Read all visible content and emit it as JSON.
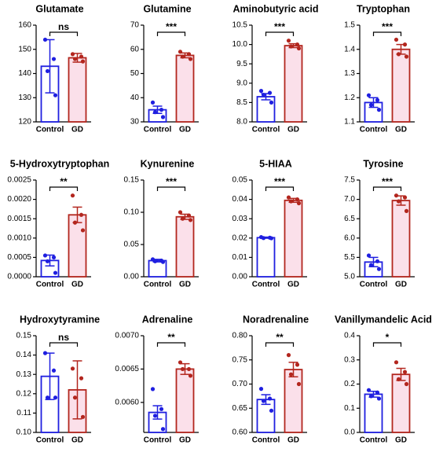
{
  "chart_data": [
    {
      "type": "bar",
      "title": "Glutamate",
      "categories": [
        "Control",
        "GD"
      ],
      "values": [
        143,
        146.5
      ],
      "errors": [
        11,
        1.8
      ],
      "points": [
        [
          154,
          146,
          141,
          131
        ],
        [
          148,
          147,
          146,
          145
        ]
      ],
      "significance": "ns",
      "colors": [
        "#1f1fe0",
        "#b3261e"
      ],
      "fills": [
        "#ffffff",
        "#fbe0ea"
      ],
      "ylim": [
        120,
        160
      ],
      "yticks": [
        120,
        130,
        140,
        150,
        160
      ]
    },
    {
      "type": "bar",
      "title": "Glutamine",
      "categories": [
        "Control",
        "GD"
      ],
      "values": [
        35,
        57.5
      ],
      "errors": [
        1.5,
        1
      ],
      "points": [
        [
          38,
          35,
          34,
          32
        ],
        [
          59,
          58,
          57,
          56
        ]
      ],
      "significance": "***",
      "colors": [
        "#1f1fe0",
        "#b3261e"
      ],
      "fills": [
        "#ffffff",
        "#fbe0ea"
      ],
      "ylim": [
        30,
        70
      ],
      "yticks": [
        30,
        40,
        50,
        60,
        70
      ]
    },
    {
      "type": "bar",
      "title": "Aminobutyric acid",
      "categories": [
        "Control",
        "GD"
      ],
      "values": [
        8.65,
        9.97
      ],
      "errors": [
        0.08,
        0.05
      ],
      "points": [
        [
          8.8,
          8.75,
          8.7,
          8.5
        ],
        [
          10.1,
          10.0,
          9.95,
          9.9
        ]
      ],
      "significance": "***",
      "colors": [
        "#1f1fe0",
        "#b3261e"
      ],
      "fills": [
        "#ffffff",
        "#fbe0ea"
      ],
      "ylim": [
        8,
        10.5
      ],
      "yticks": [
        {
          "value": 8,
          "label": "8.0"
        },
        8.5,
        {
          "value": 9,
          "label": "9.0"
        },
        9.5,
        {
          "value": 10,
          "label": "10.0"
        },
        10.5
      ]
    },
    {
      "type": "bar",
      "title": "Tryptophan",
      "categories": [
        "Control",
        "GD"
      ],
      "values": [
        1.18,
        1.4
      ],
      "errors": [
        0.02,
        0.02
      ],
      "points": [
        [
          1.21,
          1.19,
          1.17,
          1.15
        ],
        [
          1.44,
          1.42,
          1.38,
          1.37
        ]
      ],
      "significance": "***",
      "colors": [
        "#1f1fe0",
        "#b3261e"
      ],
      "fills": [
        "#ffffff",
        "#fbe0ea"
      ],
      "ylim": [
        1.1,
        1.5
      ],
      "yticks": [
        1.1,
        1.2,
        1.3,
        1.4,
        1.5
      ]
    },
    {
      "type": "bar",
      "title": "5-Hydroxytryptophan",
      "categories": [
        "Control",
        "GD"
      ],
      "values": [
        0.00042,
        0.0016
      ],
      "errors": [
        0.00014,
        0.0002
      ],
      "points": [
        [
          0.00055,
          0.0005,
          0.0004,
          0.0001
        ],
        [
          0.0021,
          0.0016,
          0.0014,
          0.0012
        ]
      ],
      "significance": "**",
      "colors": [
        "#1f1fe0",
        "#b3261e"
      ],
      "fills": [
        "#ffffff",
        "#fbe0ea"
      ],
      "ylim": [
        0,
        0.0025
      ],
      "yticks": [
        {
          "value": 0,
          "label": "0.0000"
        },
        {
          "value": 0.0005,
          "label": "0.0005"
        },
        {
          "value": 0.001,
          "label": "0.0010"
        },
        {
          "value": 0.0015,
          "label": "0.0015"
        },
        {
          "value": 0.002,
          "label": "0.0020"
        },
        {
          "value": 0.0025,
          "label": "0.0025"
        }
      ]
    },
    {
      "type": "bar",
      "title": "Kynurenine",
      "categories": [
        "Control",
        "GD"
      ],
      "values": [
        0.025,
        0.093
      ],
      "errors": [
        0.002,
        0.004
      ],
      "points": [
        [
          0.027,
          0.025,
          0.024,
          0.023
        ],
        [
          0.1,
          0.095,
          0.09,
          0.088
        ]
      ],
      "significance": "***",
      "colors": [
        "#1f1fe0",
        "#b3261e"
      ],
      "fills": [
        "#ffffff",
        "#fbe0ea"
      ],
      "ylim": [
        0,
        0.15
      ],
      "yticks": [
        {
          "value": 0,
          "label": "0.00"
        },
        0.05,
        {
          "value": 0.1,
          "label": "0.10"
        },
        0.15
      ]
    },
    {
      "type": "bar",
      "title": "5-HIAA",
      "categories": [
        "Control",
        "GD"
      ],
      "values": [
        0.0202,
        0.0395
      ],
      "errors": [
        0.0003,
        0.001
      ],
      "points": [
        [
          0.0205,
          0.0202,
          0.02,
          0.0199
        ],
        [
          0.041,
          0.04,
          0.039,
          0.038
        ]
      ],
      "significance": "***",
      "colors": [
        "#1f1fe0",
        "#b3261e"
      ],
      "fills": [
        "#ffffff",
        "#fbe0ea"
      ],
      "ylim": [
        0,
        0.05
      ],
      "yticks": [
        {
          "value": 0,
          "label": "0.00"
        },
        0.01,
        0.02,
        0.03,
        0.04,
        0.05
      ]
    },
    {
      "type": "bar",
      "title": "Tyrosine",
      "categories": [
        "Control",
        "GD"
      ],
      "values": [
        5.38,
        6.97
      ],
      "errors": [
        0.12,
        0.12
      ],
      "points": [
        [
          5.55,
          5.4,
          5.3,
          5.2
        ],
        [
          7.1,
          7.05,
          6.95,
          6.7
        ]
      ],
      "significance": "***",
      "colors": [
        "#1f1fe0",
        "#b3261e"
      ],
      "fills": [
        "#ffffff",
        "#fbe0ea"
      ],
      "ylim": [
        5,
        7.5
      ],
      "yticks": [
        {
          "value": 5,
          "label": "5.0"
        },
        5.5,
        {
          "value": 6,
          "label": "6.0"
        },
        6.5,
        {
          "value": 7,
          "label": "7.0"
        },
        7.5
      ]
    },
    {
      "type": "bar",
      "title": "Hydroxytyramine",
      "categories": [
        "Control",
        "GD"
      ],
      "values": [
        0.129,
        0.122
      ],
      "errors": [
        0.012,
        0.015
      ],
      "points": [
        [
          0.141,
          0.132,
          0.118,
          0.118
        ],
        [
          0.133,
          0.128,
          0.118,
          0.108
        ]
      ],
      "significance": "ns",
      "colors": [
        "#1f1fe0",
        "#b3261e"
      ],
      "fills": [
        "#ffffff",
        "#fbe0ea"
      ],
      "ylim": [
        0.1,
        0.15
      ],
      "yticks": [
        {
          "value": 0.1,
          "label": "0.10"
        },
        0.11,
        0.12,
        0.13,
        0.14,
        0.15
      ]
    },
    {
      "type": "bar",
      "title": "Adrenaline",
      "categories": [
        "Control",
        "GD"
      ],
      "values": [
        0.00585,
        0.0065
      ],
      "errors": [
        0.0001,
        8e-05
      ],
      "points": [
        [
          0.0062,
          0.0059,
          0.0058,
          0.0056
        ],
        [
          0.0066,
          0.0065,
          0.0065,
          0.0064
        ]
      ],
      "significance": "**",
      "colors": [
        "#1f1fe0",
        "#b3261e"
      ],
      "fills": [
        "#ffffff",
        "#fbe0ea"
      ],
      "ylim": [
        0.00555,
        0.007
      ],
      "yticks": [
        {
          "value": 0.006,
          "label": "0.0060"
        },
        {
          "value": 0.0065,
          "label": "0.0065"
        },
        {
          "value": 0.007,
          "label": "0.0070"
        }
      ]
    },
    {
      "type": "bar",
      "title": "Noradrenaline",
      "categories": [
        "Control",
        "GD"
      ],
      "values": [
        0.668,
        0.73
      ],
      "errors": [
        0.01,
        0.015
      ],
      "points": [
        [
          0.69,
          0.67,
          0.665,
          0.645
        ],
        [
          0.76,
          0.74,
          0.72,
          0.7
        ]
      ],
      "significance": "**",
      "colors": [
        "#1f1fe0",
        "#b3261e"
      ],
      "fills": [
        "#ffffff",
        "#fbe0ea"
      ],
      "ylim": [
        0.6,
        0.8
      ],
      "yticks": [
        {
          "value": 0.6,
          "label": "0.60"
        },
        0.65,
        {
          "value": 0.7,
          "label": "0.70"
        },
        0.75,
        {
          "value": 0.8,
          "label": "0.80"
        }
      ]
    },
    {
      "type": "bar",
      "title": "Vanillymandelic Acid",
      "categories": [
        "Control",
        "GD"
      ],
      "values": [
        0.158,
        0.24
      ],
      "errors": [
        0.012,
        0.025
      ],
      "points": [
        [
          0.175,
          0.165,
          0.15,
          0.14
        ],
        [
          0.29,
          0.25,
          0.22,
          0.2
        ]
      ],
      "significance": "*",
      "colors": [
        "#1f1fe0",
        "#b3261e"
      ],
      "fills": [
        "#ffffff",
        "#fbe0ea"
      ],
      "ylim": [
        0,
        0.4
      ],
      "yticks": [
        {
          "value": 0,
          "label": "0.0"
        },
        0.1,
        0.2,
        0.3,
        0.4
      ]
    }
  ]
}
